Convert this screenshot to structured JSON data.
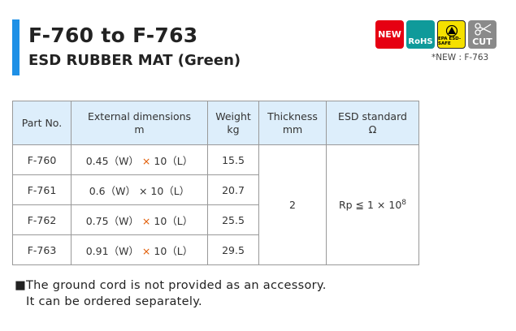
{
  "header": {
    "title": "F-760 to F-763",
    "subtitle": "ESD RUBBER MAT (Green)",
    "badges": [
      {
        "icon": "new-badge-icon",
        "label": "NEW",
        "color": "#e60012"
      },
      {
        "icon": "rohs-icon",
        "label": "RoHS",
        "color": "#0f9a9a"
      },
      {
        "icon": "esd-safe-icon",
        "label": "EPA ESD-SAFE",
        "color": "#f5e000"
      },
      {
        "icon": "cut-scissors-icon",
        "label": "CUT",
        "color": "#8a8a8a"
      }
    ],
    "new_note": "*NEW : F-763"
  },
  "table": {
    "headers": [
      {
        "l1": "Part No.",
        "l2": ""
      },
      {
        "l1": "External dimensions",
        "l2": "m"
      },
      {
        "l1": "Weight",
        "l2": "kg"
      },
      {
        "l1": "Thickness",
        "l2": "mm"
      },
      {
        "l1": "ESD standard",
        "l2": "Ω"
      }
    ],
    "rows": [
      {
        "part": "F-760",
        "w": "0.45（W）",
        "l": "10（L）",
        "weight": "15.5"
      },
      {
        "part": "F-761",
        "w": "0.6（W）",
        "l": "10（L）",
        "weight": "20.7"
      },
      {
        "part": "F-762",
        "w": "0.75（W）",
        "l": "10（L）",
        "weight": "25.5"
      },
      {
        "part": "F-763",
        "w": "0.91（W）",
        "l": "10（L）",
        "weight": "29.5"
      }
    ],
    "thickness": "2",
    "esd": {
      "base": "Rp ≦ 1 × 10",
      "exp": "8"
    }
  },
  "note": {
    "bullet": "■",
    "line1": "The ground cord is not provided as an accessory.",
    "line2": "It can be ordered separately."
  }
}
